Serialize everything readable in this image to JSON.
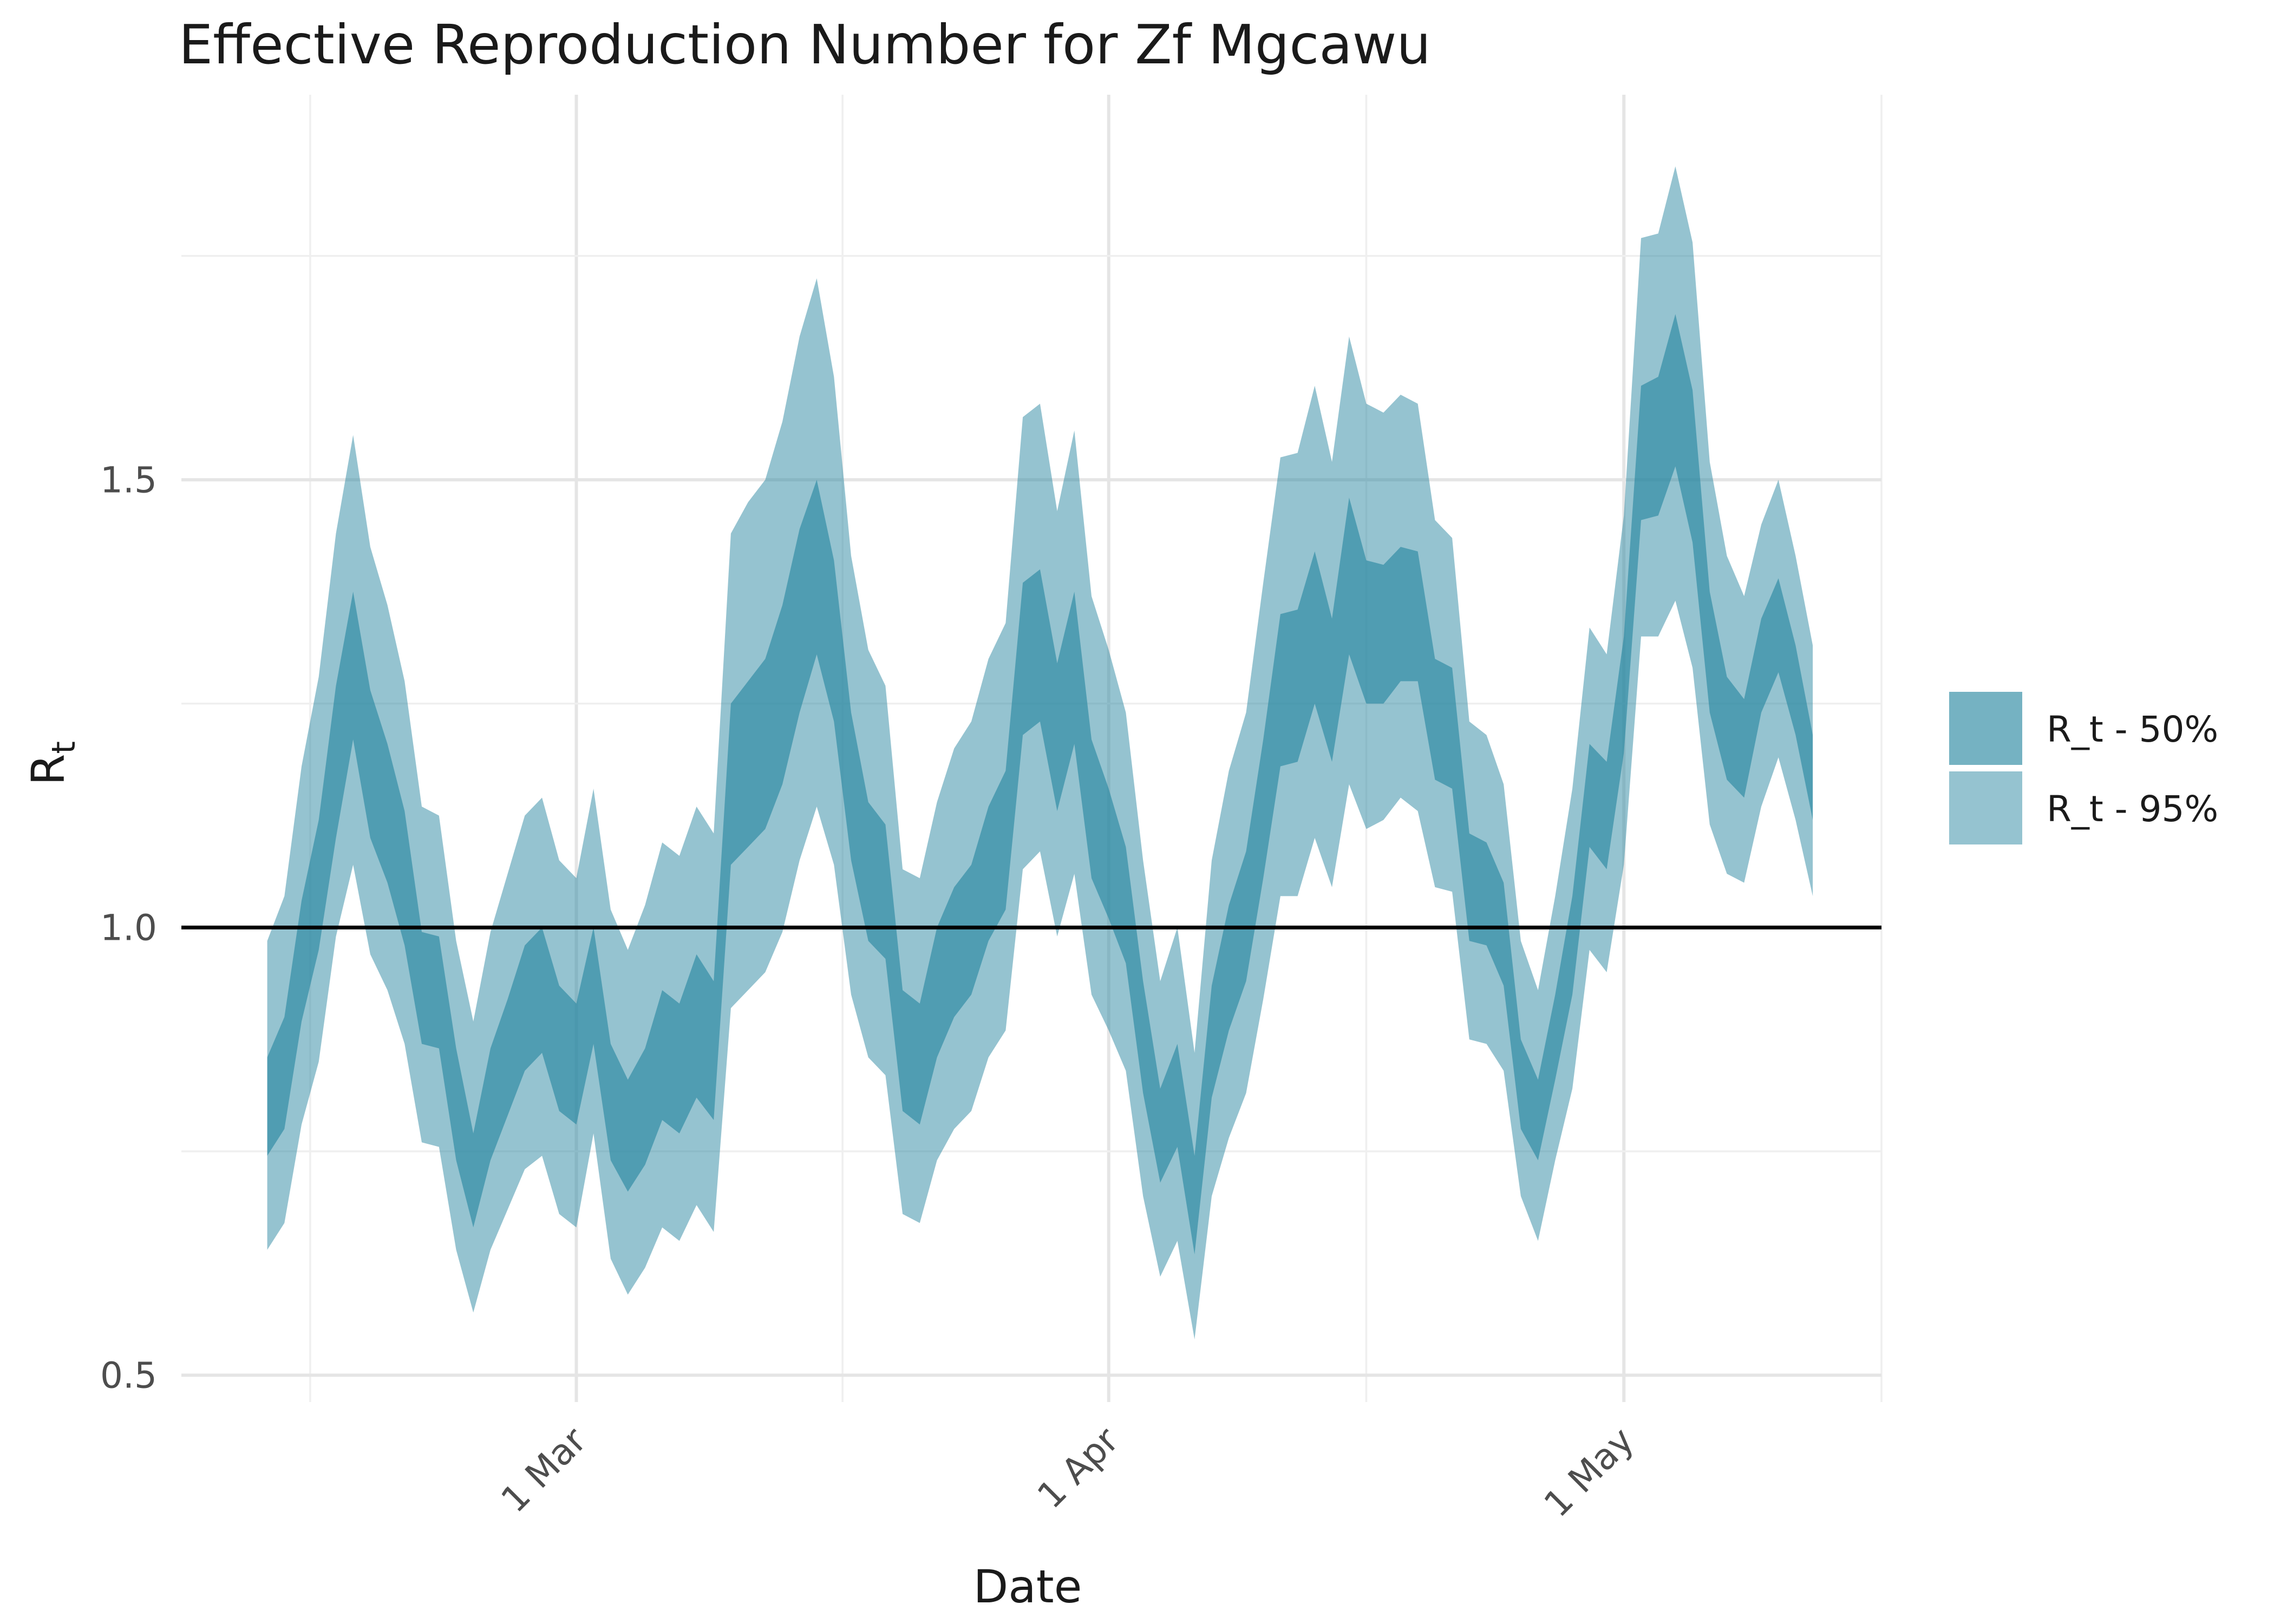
{
  "chart_data": {
    "type": "area",
    "title": "Effective Reproduction Number for Zf Mgcawu",
    "xlabel": "Date",
    "ylabel_main": "R",
    "ylabel_sub": "t",
    "x_ticks": [
      {
        "date": "2021-03-01",
        "label": "1 Mar"
      },
      {
        "date": "2021-04-01",
        "label": "1 Apr"
      },
      {
        "date": "2021-05-01",
        "label": "1 May"
      }
    ],
    "y_ticks": [
      {
        "value": 0.5,
        "label": "0.5"
      },
      {
        "value": 1.0,
        "label": "1.0"
      },
      {
        "value": 1.5,
        "label": "1.5"
      }
    ],
    "xlim": [
      "2021-02-06",
      "2021-05-16"
    ],
    "ylim": [
      0.47,
      1.93
    ],
    "reference_line": 1.0,
    "grid": true,
    "legend_position": "right",
    "legend": [
      {
        "key": "r50",
        "label": "R_t - 50%",
        "color": "#2b88a2",
        "opacity": 0.65
      },
      {
        "key": "r95",
        "label": "R_t - 95%",
        "color": "#2b88a2",
        "opacity": 0.5
      }
    ],
    "start_date": "2021-02-11",
    "series": [
      {
        "key": "lo95",
        "values": [
          0.64,
          0.67,
          0.78,
          0.85,
          0.99,
          1.07,
          0.97,
          0.93,
          0.87,
          0.76,
          0.755,
          0.64,
          0.57,
          0.64,
          0.685,
          0.73,
          0.745,
          0.68,
          0.665,
          0.77,
          0.63,
          0.59,
          0.62,
          0.665,
          0.65,
          0.69,
          0.66,
          0.91,
          0.93,
          0.95,
          0.995,
          1.075,
          1.135,
          1.07,
          0.925,
          0.855,
          0.835,
          0.68,
          0.67,
          0.74,
          0.775,
          0.795,
          0.855,
          0.885,
          1.065,
          1.085,
          0.99,
          1.06,
          0.925,
          0.885,
          0.84,
          0.7,
          0.61,
          0.65,
          0.54,
          0.7,
          0.765,
          0.815,
          0.92,
          1.035,
          1.035,
          1.1,
          1.045,
          1.16,
          1.11,
          1.12,
          1.145,
          1.13,
          1.045,
          1.04,
          0.875,
          0.87,
          0.84,
          0.7,
          0.65,
          0.74,
          0.82,
          0.975,
          0.95,
          1.07,
          1.325,
          1.325,
          1.365,
          1.29,
          1.115,
          1.06,
          1.05,
          1.135,
          1.19,
          1.12,
          1.035
        ]
      },
      {
        "key": "lo50",
        "values": [
          0.745,
          0.775,
          0.895,
          0.975,
          1.1,
          1.21,
          1.1,
          1.05,
          0.98,
          0.87,
          0.865,
          0.74,
          0.665,
          0.74,
          0.79,
          0.84,
          0.86,
          0.795,
          0.78,
          0.87,
          0.74,
          0.705,
          0.735,
          0.785,
          0.77,
          0.81,
          0.785,
          1.07,
          1.09,
          1.11,
          1.16,
          1.24,
          1.305,
          1.23,
          1.075,
          0.985,
          0.965,
          0.795,
          0.78,
          0.855,
          0.9,
          0.925,
          0.985,
          1.02,
          1.215,
          1.23,
          1.13,
          1.205,
          1.055,
          1.01,
          0.96,
          0.815,
          0.715,
          0.755,
          0.635,
          0.81,
          0.885,
          0.94,
          1.055,
          1.18,
          1.185,
          1.25,
          1.185,
          1.305,
          1.25,
          1.25,
          1.275,
          1.275,
          1.165,
          1.155,
          0.985,
          0.98,
          0.935,
          0.775,
          0.74,
          0.83,
          0.925,
          1.09,
          1.065,
          1.195,
          1.455,
          1.46,
          1.515,
          1.43,
          1.24,
          1.165,
          1.145,
          1.24,
          1.285,
          1.215,
          1.12
        ]
      },
      {
        "key": "hi50",
        "values": [
          0.855,
          0.9,
          1.03,
          1.12,
          1.27,
          1.375,
          1.265,
          1.205,
          1.13,
          0.995,
          0.99,
          0.865,
          0.77,
          0.865,
          0.92,
          0.98,
          1.0,
          0.935,
          0.915,
          1.0,
          0.87,
          0.83,
          0.865,
          0.93,
          0.915,
          0.97,
          0.94,
          1.25,
          1.275,
          1.3,
          1.36,
          1.445,
          1.5,
          1.41,
          1.24,
          1.14,
          1.115,
          0.93,
          0.915,
          1.0,
          1.045,
          1.07,
          1.135,
          1.175,
          1.385,
          1.4,
          1.295,
          1.375,
          1.21,
          1.155,
          1.09,
          0.94,
          0.82,
          0.87,
          0.745,
          0.935,
          1.025,
          1.085,
          1.21,
          1.35,
          1.355,
          1.42,
          1.345,
          1.48,
          1.41,
          1.405,
          1.425,
          1.42,
          1.3,
          1.29,
          1.105,
          1.095,
          1.05,
          0.875,
          0.83,
          0.925,
          1.035,
          1.205,
          1.185,
          1.325,
          1.605,
          1.615,
          1.685,
          1.6,
          1.375,
          1.28,
          1.255,
          1.345,
          1.39,
          1.315,
          1.215
        ]
      },
      {
        "key": "hi95",
        "values": [
          0.985,
          1.035,
          1.18,
          1.28,
          1.44,
          1.55,
          1.425,
          1.36,
          1.275,
          1.135,
          1.125,
          0.985,
          0.895,
          0.995,
          1.06,
          1.125,
          1.145,
          1.075,
          1.055,
          1.155,
          1.02,
          0.975,
          1.025,
          1.095,
          1.08,
          1.135,
          1.105,
          1.44,
          1.475,
          1.5,
          1.565,
          1.66,
          1.725,
          1.615,
          1.415,
          1.31,
          1.27,
          1.065,
          1.055,
          1.14,
          1.2,
          1.23,
          1.3,
          1.34,
          1.57,
          1.585,
          1.465,
          1.555,
          1.37,
          1.31,
          1.24,
          1.075,
          0.94,
          1.0,
          0.86,
          1.075,
          1.175,
          1.24,
          1.385,
          1.525,
          1.53,
          1.605,
          1.52,
          1.66,
          1.585,
          1.575,
          1.595,
          1.585,
          1.455,
          1.435,
          1.23,
          1.215,
          1.16,
          0.985,
          0.93,
          1.035,
          1.155,
          1.335,
          1.305,
          1.46,
          1.77,
          1.775,
          1.85,
          1.765,
          1.52,
          1.415,
          1.37,
          1.45,
          1.5,
          1.415,
          1.315
        ]
      }
    ]
  }
}
